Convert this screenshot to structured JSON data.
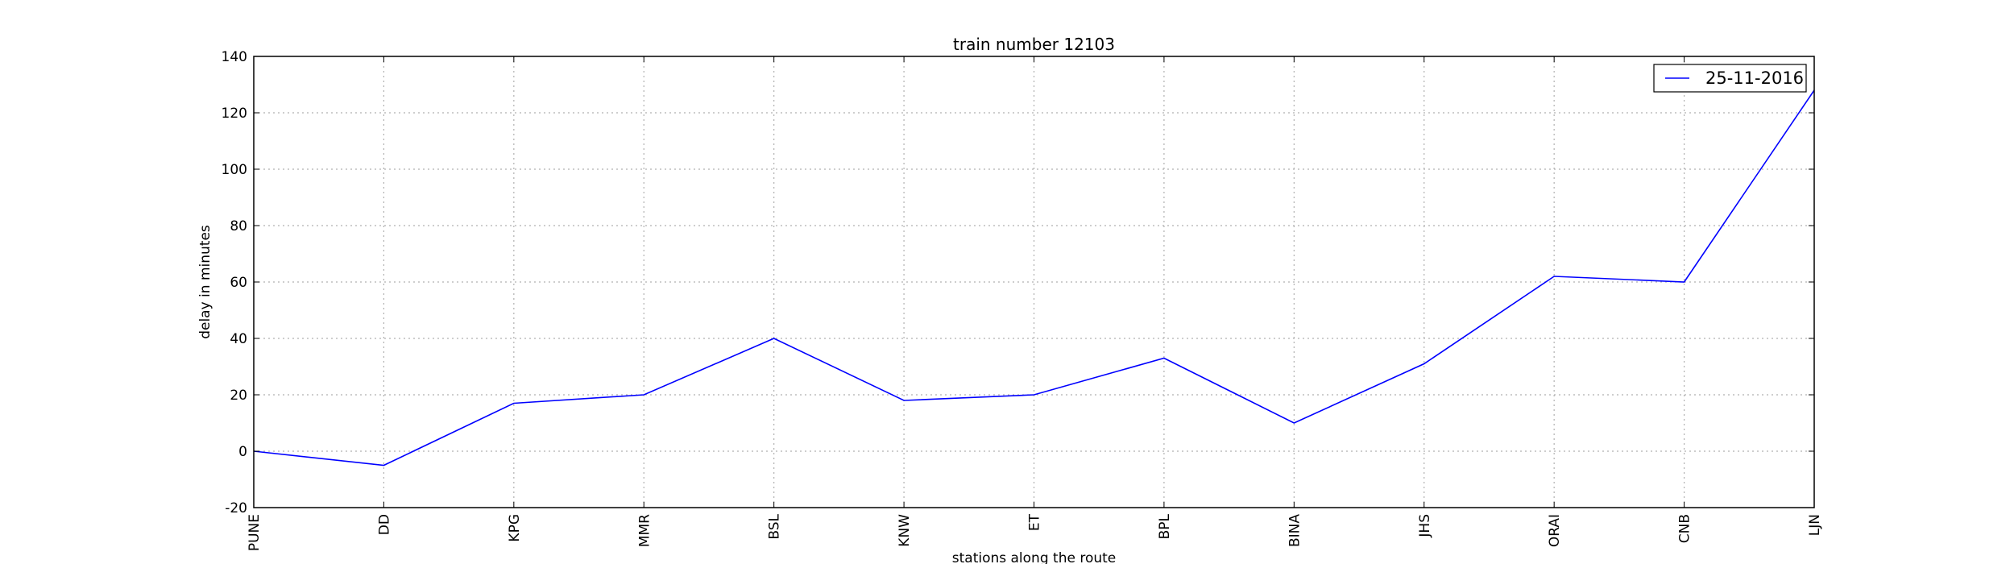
{
  "chart_data": {
    "type": "line",
    "title": "train number 12103",
    "xlabel": "stations along the route",
    "ylabel": "delay in minutes",
    "categories": [
      "PUNE",
      "DD",
      "KPG",
      "MMR",
      "BSL",
      "KNW",
      "ET",
      "BPL",
      "BINA",
      "JHS",
      "ORAI",
      "CNB",
      "LJN"
    ],
    "ylim": [
      -20,
      140
    ],
    "yticks": [
      -20,
      0,
      20,
      40,
      60,
      80,
      100,
      120,
      140
    ],
    "grid": true,
    "legend_position": "top-right",
    "series": [
      {
        "name": "25-11-2016",
        "color": "#0000ff",
        "values": [
          0,
          -5,
          17,
          20,
          40,
          18,
          20,
          33,
          10,
          31,
          62,
          60,
          128
        ]
      }
    ]
  }
}
